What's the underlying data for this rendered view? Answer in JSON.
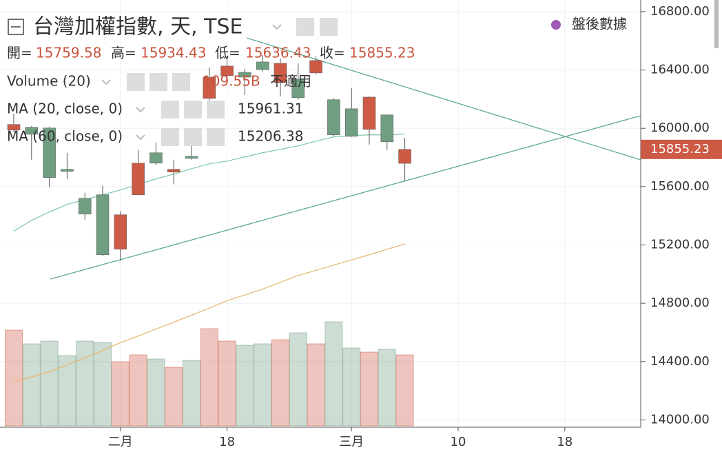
{
  "chart_data": {
    "type": "candlestick",
    "title": "台灣加權指數, 天, TSE",
    "badge": "盤後數據",
    "categories": [
      null,
      null,
      null,
      null,
      null,
      null,
      "二月",
      null,
      null,
      null,
      null,
      null,
      "18",
      null,
      null,
      null,
      null,
      null,
      null,
      "三月",
      null,
      null,
      null,
      null,
      null,
      "10",
      null,
      null,
      null,
      null,
      null,
      "18",
      null,
      null,
      null,
      null
    ],
    "ohlc_labels": [
      "開=",
      "高=",
      "低=",
      "收="
    ],
    "open": [
      15988,
      16007,
      16002,
      15719,
      15520,
      15544,
      15171,
      15544,
      15832,
      15700,
      15808,
      16205,
      16361,
      16384,
      16455,
      16314,
      16337,
      16380,
      16196,
      16134,
      15993,
      16092,
      15759.58,
      null,
      null,
      null,
      null,
      null,
      null,
      null,
      null,
      null,
      null,
      null,
      null,
      null
    ],
    "high": [
      16101,
      16016,
      16011,
      15832,
      15558,
      15605,
      15431,
      15851,
      15903,
      15785,
      15959,
      16418,
      16493,
      16408,
      16503,
      16479,
      16446,
      16493,
      16205,
      16276,
      16219,
      16096,
      15934.43,
      null,
      null,
      null,
      null,
      null,
      null,
      null,
      null,
      null,
      null,
      null,
      null,
      null
    ],
    "low": [
      15974,
      15785,
      15596,
      15653,
      15374,
      15124,
      15091,
      15539,
      15747,
      15615,
      15785,
      16186,
      16337,
      16229,
      16389,
      16219,
      16196,
      16370,
      15945,
      15941,
      15889,
      15851,
      15636.43,
      null,
      null,
      null,
      null,
      null,
      null,
      null,
      null,
      null,
      null,
      null,
      null,
      null
    ],
    "close": [
      16026,
      15959,
      15662,
      15705,
      15412,
      15133,
      15407,
      15761,
      15761,
      15719,
      15794,
      16351,
      16427,
      16351,
      16403,
      16446,
      16210,
      16465,
      15955,
      15945,
      16214,
      15908,
      15855.23,
      null,
      null,
      null,
      null,
      null,
      null,
      null,
      null,
      null,
      null,
      null,
      null,
      null
    ],
    "up_color": "#cd5a45",
    "down_color": "#6f9e80",
    "volume": {
      "name": "Volume (20)",
      "last_label": "109.55B",
      "na_label": "不適用",
      "values": [
        147.8,
        126.6,
        130.8,
        108.5,
        130.8,
        128.7,
        98.9,
        109.6,
        103.2,
        90.4,
        101.0,
        150.0,
        130.8,
        124.4,
        126.6,
        132.9,
        143.6,
        126.6,
        160.6,
        120.2,
        113.8,
        118.1,
        109.55,
        null,
        null,
        null,
        null,
        null,
        null,
        null,
        null,
        null,
        null,
        null,
        null,
        null
      ]
    },
    "series": [
      {
        "name": "MA (20, close, 0)",
        "color": "#7cc4ae",
        "values": [
          15294,
          15369,
          15426,
          15478,
          15511,
          15544,
          15577,
          15615,
          15653,
          15686,
          15723,
          15756,
          15775,
          15804,
          15832,
          15856,
          15879,
          15912,
          15941,
          15950,
          15955,
          15955,
          15961.31,
          null,
          null,
          null,
          null,
          null,
          null,
          null,
          null,
          null,
          null,
          null,
          null,
          null
        ]
      },
      {
        "name": "MA (60, close, 0)",
        "color": "#e6b46a",
        "values": [
          14260,
          14295,
          14330,
          14378,
          14425,
          14477,
          14529,
          14576,
          14623,
          14670,
          14718,
          14767,
          14817,
          14857,
          14897,
          14944,
          14991,
          15026,
          15062,
          15097,
          15133,
          15170,
          15206.38,
          null,
          null,
          null,
          null,
          null,
          null,
          null,
          null,
          null,
          null,
          null,
          null,
          null
        ]
      }
    ],
    "ylim": [
      13950,
      16880
    ],
    "yticks": [
      {
        "value": 14000,
        "label": "14000.00"
      },
      {
        "value": 14400,
        "label": "14400.00"
      },
      {
        "value": 14800,
        "label": "14800.00"
      },
      {
        "value": 15200,
        "label": "15200.00"
      },
      {
        "value": 15600,
        "label": "15600.00"
      },
      {
        "value": 16000,
        "label": "16000.00"
      },
      {
        "value": 16400,
        "label": "16400.00"
      },
      {
        "value": 16800,
        "label": "16800.00"
      }
    ],
    "grid": true
  }
}
